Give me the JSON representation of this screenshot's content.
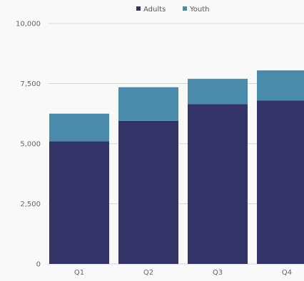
{
  "chart_data": {
    "type": "bar",
    "stacked": true,
    "categories": [
      "Q1",
      "Q2",
      "Q3",
      "Q4"
    ],
    "series": [
      {
        "name": "Adults",
        "values": [
          5100,
          5950,
          6650,
          6800
        ],
        "color": "#323468"
      },
      {
        "name": "Youth",
        "values": [
          1150,
          1400,
          1050,
          1250
        ],
        "color": "#4a8aab"
      }
    ],
    "ylim": [
      0,
      10000
    ],
    "yticks": [
      0,
      2500,
      5000,
      7500,
      10000
    ],
    "ytick_labels": [
      "0",
      "2,500",
      "5,000",
      "7,500",
      "10,000"
    ],
    "grid": true,
    "legend_position": "top-center",
    "title": "",
    "xlabel": "",
    "ylabel": ""
  }
}
